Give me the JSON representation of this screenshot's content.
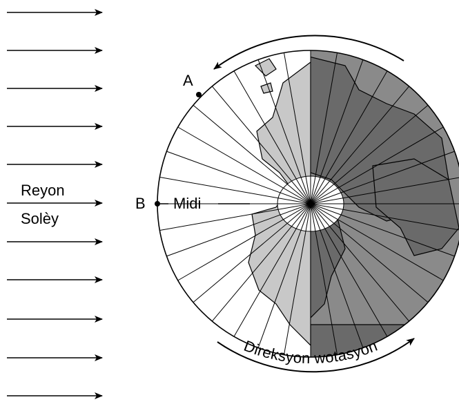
{
  "labels": {
    "sun_rays": [
      "Reyon",
      "Solèy"
    ],
    "point_a": "A",
    "point_b": "B",
    "noon": "Midi",
    "rotation": "Direksyon wotasyon"
  }
}
